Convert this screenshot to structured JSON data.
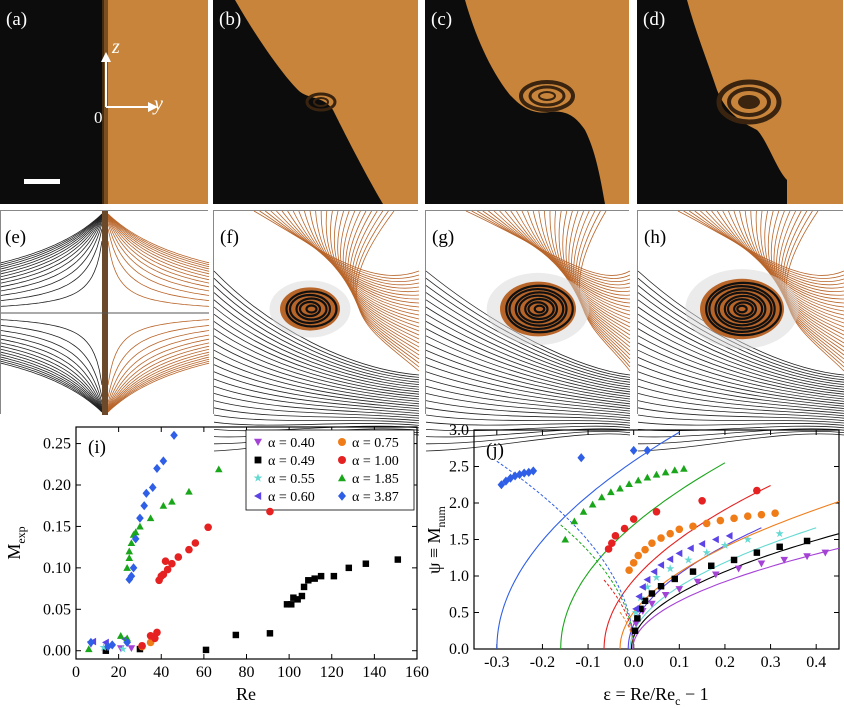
{
  "figure": {
    "top_row_labels": [
      "(a)",
      "(b)",
      "(c)",
      "(d)"
    ],
    "middle_row_labels": [
      "(e)",
      "(f)",
      "(g)",
      "(h)"
    ],
    "axes_annotation": {
      "z": "z",
      "y": "y",
      "origin": "0"
    }
  },
  "colors": {
    "fluid_orange": "#c7843a",
    "fluid_dark": "#0c0c0c",
    "streamline_orange": "#b8652a",
    "streamline_black": "#222222",
    "series": {
      "a040": "#a542d6",
      "a049": "#000000",
      "a055": "#66d9d3",
      "a060": "#5b43e6",
      "a075": "#f07c18",
      "a100": "#e52121",
      "a185": "#1aa61a",
      "a387": "#2f5fe6"
    }
  },
  "chart_data": [
    {
      "id": "(i)",
      "type": "scatter",
      "title": "(i)",
      "xlabel": "Re",
      "ylabel_main": "M",
      "ylabel_sub": "exp",
      "xlim": [
        0,
        160
      ],
      "ylim": [
        -0.01,
        0.27
      ],
      "xticks": [
        0,
        20,
        40,
        60,
        80,
        100,
        120,
        140,
        160
      ],
      "yticks": [
        0.0,
        0.05,
        0.1,
        0.15,
        0.2,
        0.25
      ],
      "xtick_labels": [
        "0",
        "20",
        "40",
        "60",
        "80",
        "100",
        "120",
        "140",
        "160"
      ],
      "ytick_labels": [
        "0.00",
        "0.05",
        "0.10",
        "0.15",
        "0.20",
        "0.25"
      ],
      "legend": [
        {
          "label": "α = 0.40",
          "key": "a040",
          "marker": "triangle-down"
        },
        {
          "label": "α = 0.75",
          "key": "a075",
          "marker": "circle"
        },
        {
          "label": "α = 0.49",
          "key": "a049",
          "marker": "square"
        },
        {
          "label": "α = 1.00",
          "key": "a100",
          "marker": "circle"
        },
        {
          "label": "α = 0.55",
          "key": "a055",
          "marker": "star"
        },
        {
          "label": "α = 1.85",
          "key": "a185",
          "marker": "triangle-up"
        },
        {
          "label": "α = 0.60",
          "key": "a060",
          "marker": "triangle-left"
        },
        {
          "label": "α = 3.87",
          "key": "a387",
          "marker": "diamond"
        }
      ],
      "series": [
        {
          "key": "a040",
          "marker": "triangle-down",
          "points": [
            [
              7,
              0.008
            ],
            [
              15,
              0.005
            ],
            [
              21,
              0.003
            ],
            [
              26,
              0.003
            ]
          ]
        },
        {
          "key": "a049",
          "marker": "square",
          "points": [
            [
              14,
              0.0
            ],
            [
              30,
              0.002
            ],
            [
              61,
              0.001
            ],
            [
              75,
              0.019
            ],
            [
              91,
              0.021
            ],
            [
              99,
              0.056
            ],
            [
              101,
              0.056
            ],
            [
              102,
              0.064
            ],
            [
              104,
              0.062
            ],
            [
              106,
              0.066
            ],
            [
              107,
              0.077
            ],
            [
              109,
              0.085
            ],
            [
              112,
              0.087
            ],
            [
              115,
              0.09
            ],
            [
              121,
              0.09
            ],
            [
              128,
              0.1
            ],
            [
              136,
              0.105
            ],
            [
              151,
              0.11
            ]
          ]
        },
        {
          "key": "a055",
          "marker": "star",
          "points": [
            [
              13,
              0.004
            ],
            [
              22,
              0.002
            ]
          ]
        },
        {
          "key": "a060",
          "marker": "triangle-left",
          "points": [
            [
              8,
              0.011
            ],
            [
              14,
              0.01
            ],
            [
              23,
              0.014
            ]
          ]
        },
        {
          "key": "a075",
          "marker": "circle",
          "points": [
            [
              31,
              0.005
            ],
            [
              35,
              0.01
            ]
          ]
        },
        {
          "key": "a100",
          "marker": "circle",
          "points": [
            [
              31,
              0.006
            ],
            [
              35,
              0.018
            ],
            [
              37,
              0.015
            ],
            [
              38,
              0.022
            ],
            [
              39,
              0.085
            ],
            [
              40,
              0.09
            ],
            [
              41,
              0.092
            ],
            [
              42,
              0.108
            ],
            [
              43,
              0.098
            ],
            [
              45,
              0.105
            ],
            [
              48,
              0.113
            ],
            [
              53,
              0.122
            ],
            [
              56,
              0.13
            ],
            [
              62,
              0.149
            ],
            [
              91,
              0.168
            ]
          ]
        },
        {
          "key": "a185",
          "marker": "triangle-up",
          "points": [
            [
              6,
              0.002
            ],
            [
              21,
              0.018
            ],
            [
              24,
              0.015
            ],
            [
              24,
              0.1
            ],
            [
              25,
              0.112
            ],
            [
              25,
              0.12
            ],
            [
              26,
              0.13
            ],
            [
              27,
              0.14
            ],
            [
              28,
              0.143
            ],
            [
              30,
              0.15
            ],
            [
              35,
              0.16
            ],
            [
              41,
              0.175
            ],
            [
              45,
              0.18
            ],
            [
              53,
              0.192
            ],
            [
              67,
              0.219
            ]
          ]
        },
        {
          "key": "a387",
          "marker": "diamond",
          "points": [
            [
              7,
              0.01
            ],
            [
              15,
              0.005
            ],
            [
              17,
              0.007
            ],
            [
              24,
              0.01
            ],
            [
              25,
              0.086
            ],
            [
              26,
              0.09
            ],
            [
              27,
              0.1
            ],
            [
              28,
              0.135
            ],
            [
              30,
              0.16
            ],
            [
              32,
              0.175
            ],
            [
              33,
              0.19
            ],
            [
              36,
              0.197
            ],
            [
              38,
              0.22
            ],
            [
              41,
              0.229
            ],
            [
              46,
              0.26
            ]
          ]
        }
      ]
    },
    {
      "id": "(j)",
      "type": "scatter",
      "title": "(j)",
      "xlabel": "ε = Re/Re",
      "xlabel_sub": "c",
      "xlabel_tail": " − 1",
      "ylabel_main": "ψ ≡ M",
      "ylabel_sub": "num",
      "xlim": [
        -0.35,
        0.45
      ],
      "ylim": [
        0,
        3.0
      ],
      "xticks": [
        -0.3,
        -0.2,
        -0.1,
        0.0,
        0.1,
        0.2,
        0.3,
        0.4
      ],
      "yticks": [
        0.0,
        0.5,
        1.0,
        1.5,
        2.0,
        2.5,
        3.0
      ],
      "xtick_labels": [
        "-0.3",
        "-0.2",
        "-0.1",
        "0.0",
        "0.1",
        "0.2",
        "0.3",
        "0.4"
      ],
      "ytick_labels": [
        "0.0",
        "0.5",
        "1.0",
        "1.5",
        "2.0",
        "2.5",
        "3.0"
      ],
      "fit_curves": [
        {
          "key": "a040",
          "xs": -0.002,
          "ymax": 1.38,
          "xmax": 0.45
        },
        {
          "key": "a049",
          "xs": -0.005,
          "ymax": 1.58,
          "xmax": 0.45
        },
        {
          "key": "a055",
          "xs": -0.008,
          "ymax": 1.66,
          "xmax": 0.4
        },
        {
          "key": "a060",
          "xs": -0.012,
          "ymax": 1.66,
          "xmax": 0.28
        },
        {
          "key": "a075",
          "xs": -0.03,
          "ymax": 2.02,
          "xmax": 0.45
        },
        {
          "key": "a100",
          "xs": -0.065,
          "ymax": 2.24,
          "xmax": 0.3
        },
        {
          "key": "a185",
          "xs": -0.16,
          "ymax": 2.55,
          "xmax": 0.2
        },
        {
          "key": "a387",
          "xs": -0.3,
          "ymax": 2.97,
          "xmax": 0.1
        }
      ],
      "series": [
        {
          "key": "a040",
          "marker": "triangle-down",
          "points": [
            [
              0.005,
              0.35
            ],
            [
              0.02,
              0.52
            ],
            [
              0.04,
              0.62
            ],
            [
              0.07,
              0.74
            ],
            [
              0.1,
              0.82
            ],
            [
              0.14,
              0.92
            ],
            [
              0.18,
              1.02
            ],
            [
              0.23,
              1.1
            ],
            [
              0.28,
              1.17
            ],
            [
              0.33,
              1.22
            ],
            [
              0.38,
              1.27
            ],
            [
              0.42,
              1.32
            ]
          ]
        },
        {
          "key": "a049",
          "marker": "square",
          "points": [
            [
              0.003,
              0.25
            ],
            [
              0.008,
              0.42
            ],
            [
              0.015,
              0.55
            ],
            [
              0.025,
              0.66
            ],
            [
              0.04,
              0.76
            ],
            [
              0.06,
              0.86
            ],
            [
              0.09,
              0.96
            ],
            [
              0.13,
              1.06
            ],
            [
              0.17,
              1.14
            ],
            [
              0.22,
              1.22
            ],
            [
              0.27,
              1.32
            ],
            [
              0.32,
              1.4
            ],
            [
              0.38,
              1.48
            ]
          ]
        },
        {
          "key": "a055",
          "marker": "star",
          "points": [
            [
              0.005,
              0.5
            ],
            [
              0.015,
              0.7
            ],
            [
              0.03,
              0.85
            ],
            [
              0.05,
              0.98
            ],
            [
              0.08,
              1.1
            ],
            [
              0.12,
              1.22
            ],
            [
              0.16,
              1.32
            ],
            [
              0.2,
              1.42
            ],
            [
              0.25,
              1.5
            ],
            [
              0.32,
              1.58
            ]
          ]
        },
        {
          "key": "a060",
          "marker": "triangle-left",
          "points": [
            [
              0.005,
              0.55
            ],
            [
              0.012,
              0.72
            ],
            [
              0.02,
              0.85
            ],
            [
              0.03,
              0.95
            ],
            [
              0.045,
              1.06
            ],
            [
              0.06,
              1.15
            ],
            [
              0.08,
              1.23
            ],
            [
              0.1,
              1.31
            ],
            [
              0.125,
              1.38
            ],
            [
              0.15,
              1.44
            ],
            [
              0.18,
              1.5
            ],
            [
              0.21,
              1.55
            ]
          ]
        },
        {
          "key": "a075",
          "marker": "circle",
          "points": [
            [
              -0.01,
              1.08
            ],
            [
              0.0,
              1.18
            ],
            [
              0.01,
              1.28
            ],
            [
              0.025,
              1.36
            ],
            [
              0.04,
              1.45
            ],
            [
              0.06,
              1.52
            ],
            [
              0.08,
              1.58
            ],
            [
              0.1,
              1.64
            ],
            [
              0.13,
              1.68
            ],
            [
              0.16,
              1.72
            ],
            [
              0.19,
              1.76
            ],
            [
              0.22,
              1.79
            ],
            [
              0.25,
              1.82
            ],
            [
              0.28,
              1.84
            ],
            [
              0.31,
              1.86
            ]
          ]
        },
        {
          "key": "a100",
          "marker": "circle",
          "points": [
            [
              -0.055,
              1.37
            ],
            [
              -0.048,
              1.45
            ],
            [
              -0.04,
              1.55
            ],
            [
              -0.02,
              1.65
            ],
            [
              0.0,
              1.78
            ],
            [
              0.05,
              1.88
            ],
            [
              0.15,
              2.03
            ],
            [
              0.27,
              2.17
            ]
          ]
        },
        {
          "key": "a185",
          "marker": "triangle-up",
          "points": [
            [
              -0.15,
              1.5
            ],
            [
              -0.13,
              1.75
            ],
            [
              -0.11,
              1.88
            ],
            [
              -0.09,
              1.98
            ],
            [
              -0.07,
              2.08
            ],
            [
              -0.05,
              2.15
            ],
            [
              -0.03,
              2.2
            ],
            [
              -0.01,
              2.26
            ],
            [
              0.01,
              2.31
            ],
            [
              0.03,
              2.35
            ],
            [
              0.05,
              2.39
            ],
            [
              0.07,
              2.42
            ],
            [
              0.09,
              2.45
            ],
            [
              0.11,
              2.47
            ]
          ]
        },
        {
          "key": "a387",
          "marker": "diamond",
          "points": [
            [
              -0.29,
              2.25
            ],
            [
              -0.28,
              2.3
            ],
            [
              -0.27,
              2.34
            ],
            [
              -0.26,
              2.37
            ],
            [
              -0.25,
              2.39
            ],
            [
              -0.24,
              2.41
            ],
            [
              -0.23,
              2.42
            ],
            [
              -0.22,
              2.44
            ],
            [
              -0.115,
              2.62
            ],
            [
              0.0,
              2.72
            ],
            [
              0.03,
              2.72
            ]
          ]
        }
      ]
    }
  ]
}
